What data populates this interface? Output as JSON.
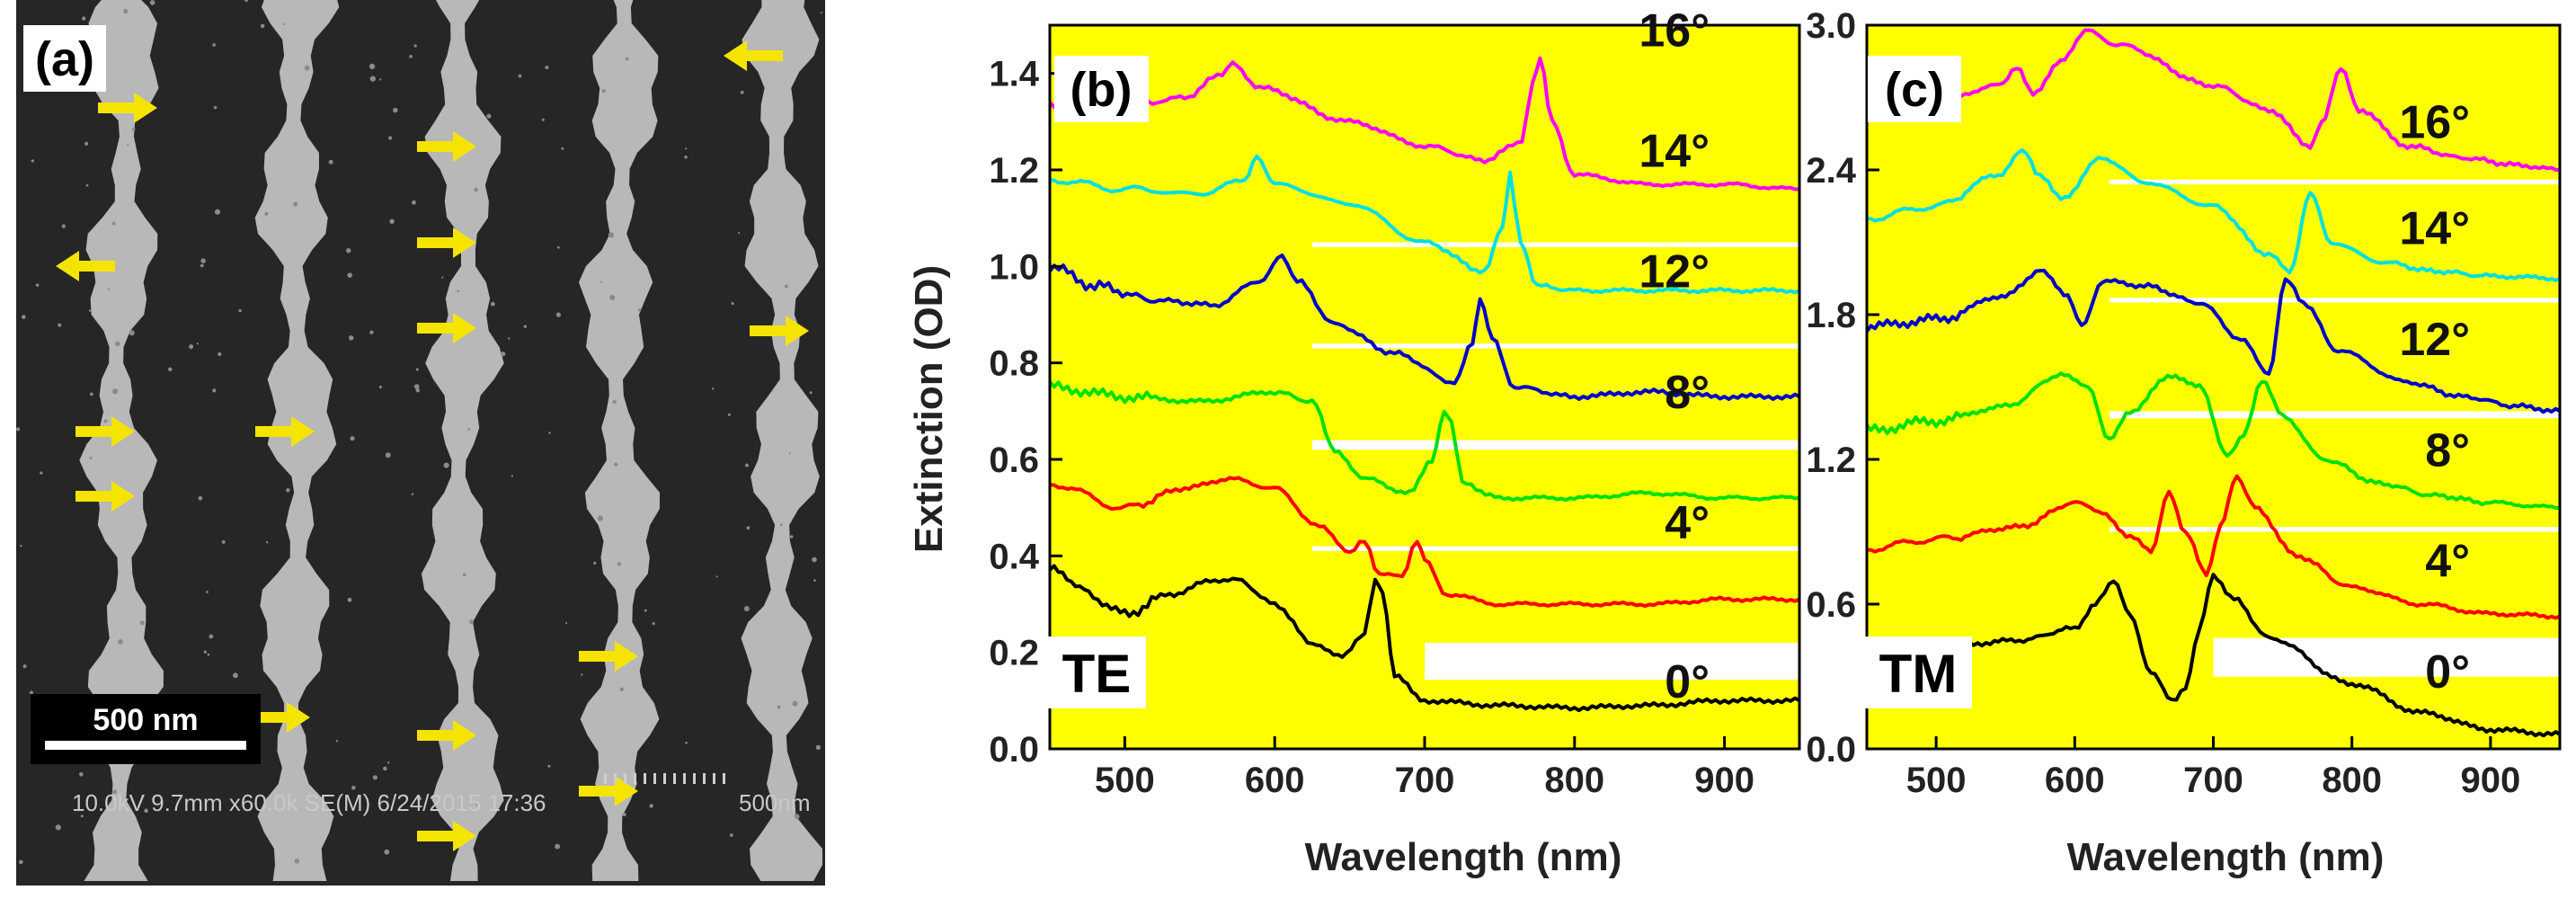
{
  "panel_a": {
    "label": "(a)",
    "scale_bar_label": "500 nm",
    "sem_info": "10.0kV 9.7mm x60.0k SE(M) 6/24/2015 17:36",
    "sem_scale_label": "500nm",
    "colors": {
      "background": "#2a2a2a",
      "wire": "#b8b8b8",
      "arrow": "#f5e400"
    }
  },
  "chart_data": [
    {
      "type": "line",
      "panel": "(b)",
      "polarization_label": "TE",
      "xlabel": "Wavelength (nm)",
      "ylabel": "Extinction (OD)",
      "xlim": [
        450,
        950
      ],
      "ylim": [
        0,
        1.5
      ],
      "xticks": [
        "500",
        "600",
        "700",
        "800",
        "900"
      ],
      "yticks": [
        "0.0",
        "0.2",
        "0.4",
        "0.6",
        "0.8",
        "1.0",
        "1.2",
        "1.4"
      ],
      "background_color": "#ffff00",
      "bands": [
        [
          0.22,
          0.41
        ],
        [
          0.42,
          0.62
        ],
        [
          0.64,
          0.83
        ],
        [
          0.84,
          1.04
        ],
        [
          1.05,
          1.17
        ]
      ],
      "series": [
        {
          "name": "0°",
          "label": "0°",
          "color": "#000000",
          "label_at": [
            905,
            0.14
          ],
          "x": [
            450,
            470,
            500,
            530,
            560,
            575,
            600,
            625,
            645,
            660,
            667,
            672,
            680,
            700,
            750,
            800,
            850,
            900,
            950
          ],
          "y": [
            0.38,
            0.33,
            0.28,
            0.32,
            0.35,
            0.35,
            0.3,
            0.22,
            0.19,
            0.24,
            0.35,
            0.32,
            0.15,
            0.1,
            0.09,
            0.085,
            0.09,
            0.1,
            0.1
          ]
        },
        {
          "name": "4°",
          "label": "4°",
          "color": "#ff0000",
          "label_at": [
            905,
            0.47
          ],
          "x": [
            450,
            500,
            540,
            570,
            600,
            630,
            650,
            660,
            670,
            685,
            695,
            700,
            715,
            750,
            800,
            850,
            900,
            950
          ],
          "y": [
            0.55,
            0.5,
            0.54,
            0.56,
            0.54,
            0.46,
            0.41,
            0.43,
            0.36,
            0.36,
            0.43,
            0.39,
            0.32,
            0.3,
            0.3,
            0.3,
            0.31,
            0.31
          ]
        },
        {
          "name": "8°",
          "label": "8°",
          "color": "#00e000",
          "label_at": [
            910,
            0.74
          ],
          "x": [
            450,
            500,
            550,
            600,
            625,
            640,
            660,
            690,
            705,
            713,
            718,
            725,
            750,
            800,
            850,
            900,
            950
          ],
          "y": [
            0.75,
            0.73,
            0.72,
            0.74,
            0.72,
            0.62,
            0.56,
            0.53,
            0.6,
            0.7,
            0.68,
            0.55,
            0.52,
            0.52,
            0.53,
            0.52,
            0.52
          ]
        },
        {
          "name": "12°",
          "label": "12°",
          "color": "#0000cc",
          "label_at": [
            930,
            0.99
          ],
          "x": [
            450,
            480,
            520,
            560,
            590,
            605,
            615,
            640,
            680,
            720,
            732,
            737,
            745,
            760,
            800,
            850,
            900,
            950
          ],
          "y": [
            1.0,
            0.96,
            0.93,
            0.92,
            0.97,
            1.02,
            0.97,
            0.88,
            0.82,
            0.76,
            0.84,
            0.93,
            0.85,
            0.75,
            0.73,
            0.74,
            0.73,
            0.73
          ]
        },
        {
          "name": "14°",
          "label": "14°",
          "color": "#00e0e0",
          "label_at": [
            948,
            1.24
          ],
          "x": [
            450,
            500,
            550,
            580,
            588,
            600,
            650,
            700,
            740,
            752,
            757,
            764,
            775,
            800,
            850,
            900,
            950
          ],
          "y": [
            1.18,
            1.16,
            1.15,
            1.18,
            1.23,
            1.17,
            1.13,
            1.05,
            0.99,
            1.08,
            1.19,
            1.05,
            0.96,
            0.95,
            0.95,
            0.95,
            0.95
          ]
        },
        {
          "name": "16°",
          "label": "16°",
          "color": "#ff00ff",
          "label_at": [
            958,
            1.49
          ],
          "x": [
            450,
            500,
            540,
            565,
            572,
            590,
            650,
            700,
            740,
            765,
            772,
            777,
            785,
            800,
            850,
            900,
            950
          ],
          "y": [
            1.33,
            1.33,
            1.35,
            1.4,
            1.42,
            1.37,
            1.3,
            1.25,
            1.22,
            1.26,
            1.38,
            1.43,
            1.3,
            1.19,
            1.17,
            1.17,
            1.16
          ]
        }
      ]
    },
    {
      "type": "line",
      "panel": "(c)",
      "polarization_label": "TM",
      "xlabel": "Wavelength (nm)",
      "ylabel": "",
      "xlim": [
        450,
        950
      ],
      "ylim": [
        0,
        3.0
      ],
      "xticks": [
        "500",
        "600",
        "700",
        "800",
        "900"
      ],
      "yticks": [
        "0.0",
        "0.6",
        "1.2",
        "1.8",
        "2.4",
        "3.0"
      ],
      "background_color": "#ffff00",
      "bands": [
        [
          0.46,
          0.9
        ],
        [
          0.92,
          1.37
        ],
        [
          1.4,
          1.85
        ],
        [
          1.87,
          2.34
        ],
        [
          2.36,
          2.78
        ]
      ],
      "series": [
        {
          "name": "0°",
          "label": "0°",
          "color": "#000000",
          "label_at": [
            906,
            0.32
          ],
          "x": [
            450,
            500,
            560,
            600,
            615,
            628,
            640,
            655,
            670,
            680,
            690,
            700,
            715,
            740,
            800,
            850,
            900,
            950
          ],
          "y": [
            0.4,
            0.42,
            0.45,
            0.5,
            0.6,
            0.7,
            0.55,
            0.32,
            0.2,
            0.25,
            0.5,
            0.72,
            0.62,
            0.46,
            0.27,
            0.15,
            0.08,
            0.06
          ]
        },
        {
          "name": "4°",
          "label": "4°",
          "color": "#ff0000",
          "label_at": [
            906,
            0.78
          ],
          "x": [
            450,
            500,
            560,
            600,
            620,
            640,
            655,
            668,
            680,
            695,
            705,
            717,
            730,
            760,
            800,
            850,
            900,
            950
          ],
          "y": [
            0.83,
            0.87,
            0.92,
            1.02,
            0.98,
            0.88,
            0.82,
            1.06,
            0.9,
            0.72,
            0.92,
            1.13,
            1.0,
            0.8,
            0.67,
            0.6,
            0.56,
            0.55
          ]
        },
        {
          "name": "8°",
          "label": "8°",
          "color": "#00e000",
          "label_at": [
            906,
            1.24
          ],
          "x": [
            450,
            500,
            550,
            590,
            610,
            625,
            640,
            670,
            690,
            710,
            722,
            735,
            750,
            780,
            820,
            860,
            900,
            950
          ],
          "y": [
            1.32,
            1.36,
            1.42,
            1.55,
            1.5,
            1.28,
            1.4,
            1.55,
            1.5,
            1.22,
            1.3,
            1.53,
            1.38,
            1.2,
            1.1,
            1.05,
            1.02,
            1.0
          ]
        },
        {
          "name": "12°",
          "label": "12°",
          "color": "#0000cc",
          "label_at": [
            906,
            1.7
          ],
          "x": [
            450,
            500,
            550,
            575,
            595,
            605,
            620,
            650,
            690,
            720,
            740,
            752,
            765,
            790,
            840,
            880,
            920,
            950
          ],
          "y": [
            1.75,
            1.78,
            1.88,
            1.98,
            1.88,
            1.75,
            1.94,
            1.92,
            1.85,
            1.7,
            1.55,
            1.95,
            1.85,
            1.65,
            1.52,
            1.46,
            1.42,
            1.4
          ]
        },
        {
          "name": "14°",
          "label": "14°",
          "color": "#00e0e0",
          "label_at": [
            906,
            2.16
          ],
          "x": [
            450,
            500,
            545,
            562,
            575,
            590,
            620,
            650,
            700,
            740,
            755,
            770,
            785,
            820,
            860,
            900,
            950
          ],
          "y": [
            2.2,
            2.25,
            2.38,
            2.48,
            2.38,
            2.28,
            2.45,
            2.35,
            2.25,
            2.05,
            1.98,
            2.3,
            2.1,
            2.02,
            1.98,
            1.96,
            1.95
          ]
        },
        {
          "name": "16°",
          "label": "16°",
          "color": "#ff00ff",
          "label_at": [
            906,
            2.6
          ],
          "x": [
            450,
            500,
            545,
            558,
            570,
            590,
            610,
            630,
            700,
            740,
            770,
            778,
            792,
            805,
            840,
            880,
            920,
            950
          ],
          "y": [
            2.65,
            2.68,
            2.75,
            2.82,
            2.72,
            2.85,
            2.98,
            2.92,
            2.75,
            2.65,
            2.5,
            2.6,
            2.82,
            2.65,
            2.5,
            2.45,
            2.42,
            2.4
          ]
        }
      ]
    }
  ]
}
